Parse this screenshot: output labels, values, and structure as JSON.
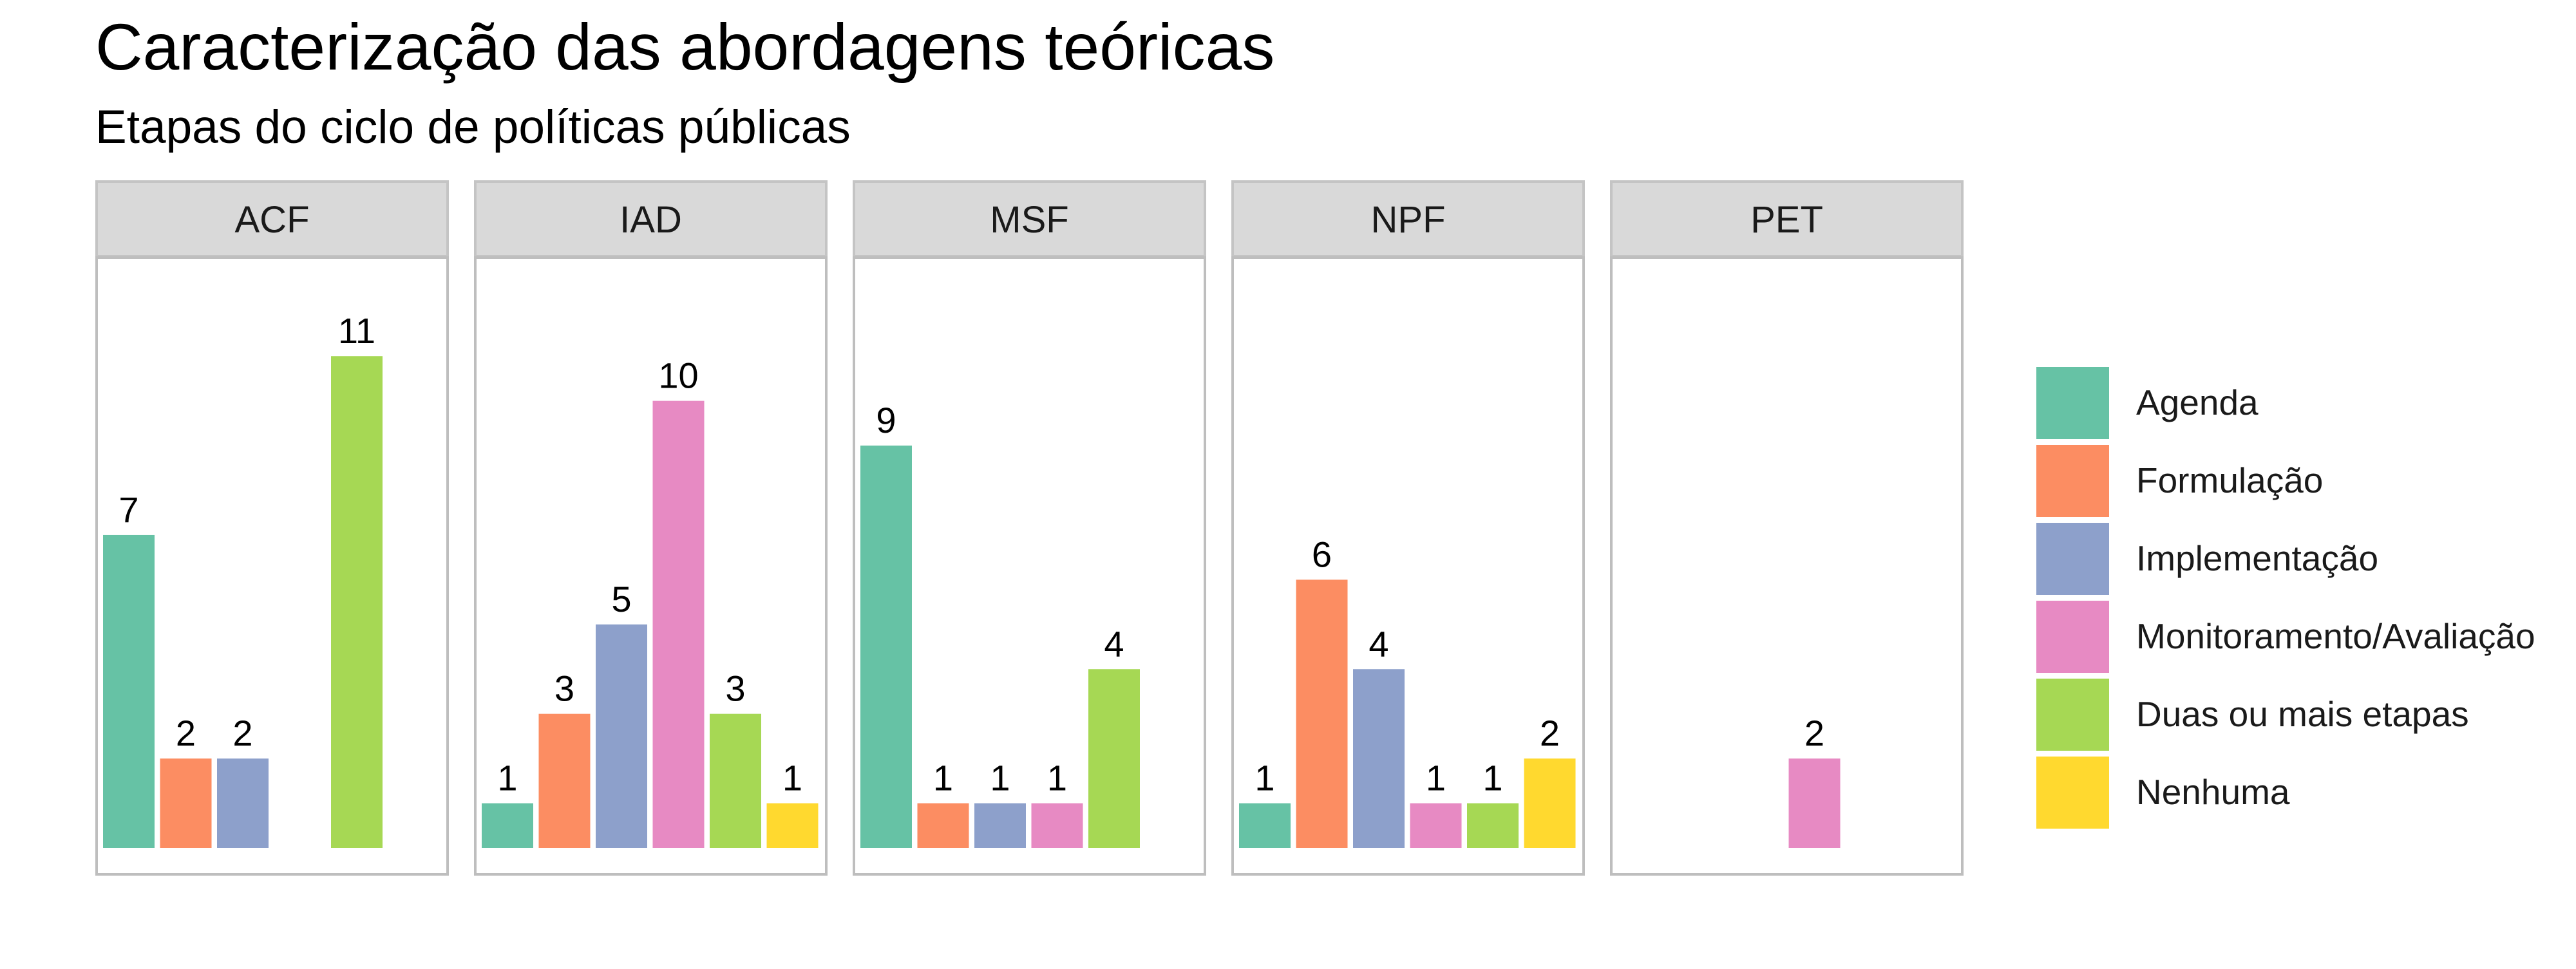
{
  "chart_data": {
    "type": "bar",
    "title": "Caracterização das abordagens teóricas",
    "subtitle": "Etapas do ciclo de políticas públicas",
    "facets": [
      "ACF",
      "IAD",
      "MSF",
      "NPF",
      "PET"
    ],
    "categories": [
      "Agenda",
      "Formulação",
      "Implementação",
      "Monitoramento/Avaliação",
      "Duas ou mais etapas",
      "Nenhuma"
    ],
    "colors": {
      "Agenda": "#66C2A5",
      "Formulação": "#FC8D62",
      "Implementação": "#8DA0CB",
      "Monitoramento/Avaliação": "#E78AC3",
      "Duas ou mais etapas": "#A6D854",
      "Nenhuma": "#FFD92F"
    },
    "series": [
      {
        "facet": "ACF",
        "values": [
          7,
          2,
          2,
          0,
          11,
          0
        ]
      },
      {
        "facet": "IAD",
        "values": [
          1,
          3,
          5,
          10,
          3,
          1
        ]
      },
      {
        "facet": "MSF",
        "values": [
          9,
          1,
          1,
          1,
          4,
          0
        ]
      },
      {
        "facet": "NPF",
        "values": [
          1,
          6,
          4,
          1,
          1,
          2
        ]
      },
      {
        "facet": "PET",
        "values": [
          0,
          0,
          0,
          2,
          0,
          0
        ]
      }
    ],
    "ylim": [
      0,
      11.55
    ],
    "xlabel": "",
    "ylabel": "",
    "grid": false,
    "legend_position": "right"
  }
}
